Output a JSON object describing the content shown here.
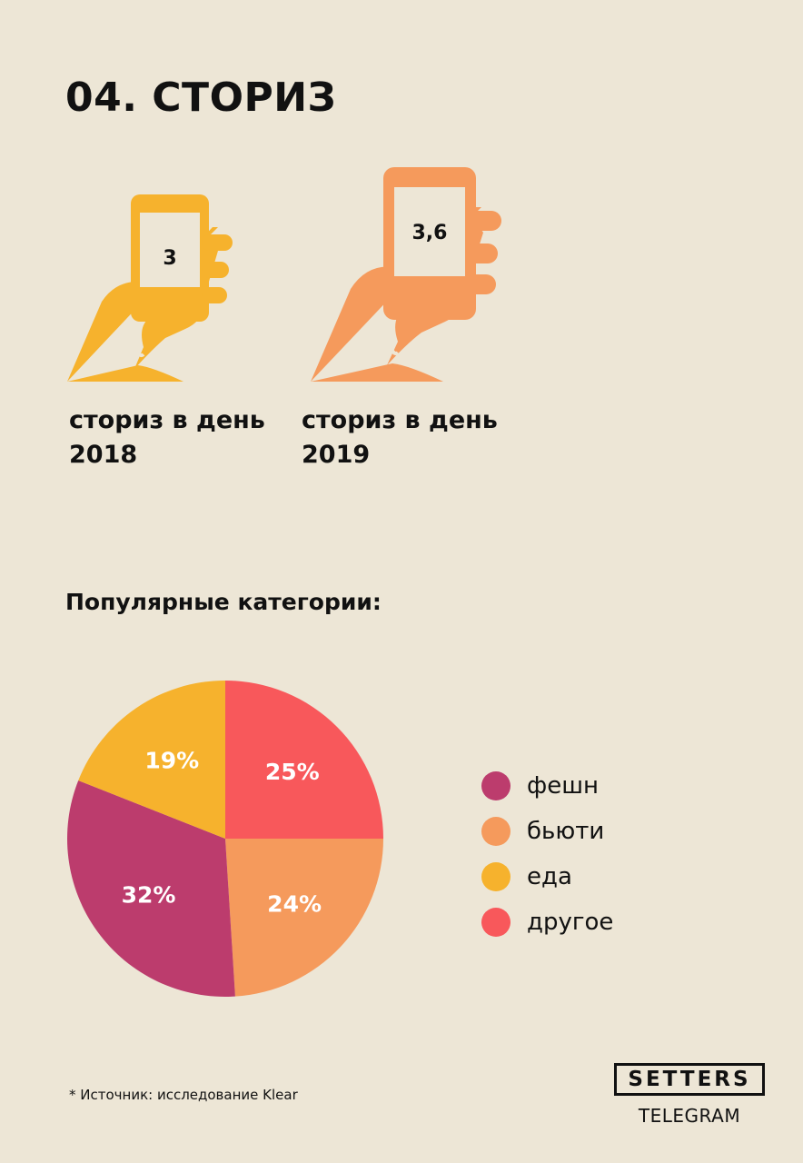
{
  "title": "04. СТОРИЗ",
  "phones": [
    {
      "value": "3",
      "caption_line1": "сториз в день",
      "caption_line2": "2018",
      "color": "#f6b22d"
    },
    {
      "value": "3,6",
      "caption_line1": "сториз в день",
      "caption_line2": "2019",
      "color": "#f59a5c"
    }
  ],
  "subheading": "Популярные категории:",
  "chart_data": {
    "type": "pie",
    "title": "Популярные категории:",
    "slices": [
      {
        "name": "другое",
        "value": 25,
        "label": "25%",
        "color": "#f8585b"
      },
      {
        "name": "бьюти",
        "value": 24,
        "label": "24%",
        "color": "#f59a5c"
      },
      {
        "name": "фешн",
        "value": 32,
        "label": "32%",
        "color": "#bc3c6d"
      },
      {
        "name": "еда",
        "value": 19,
        "label": "19%",
        "color": "#f6b22d"
      }
    ],
    "legend_order": [
      "фешн",
      "бьюти",
      "еда",
      "другое"
    ],
    "legend_placement": "right"
  },
  "footer": {
    "source": "* Источник: исследование Klear",
    "logo_main": "SETTERS",
    "logo_sub": "TELEGRAM"
  }
}
